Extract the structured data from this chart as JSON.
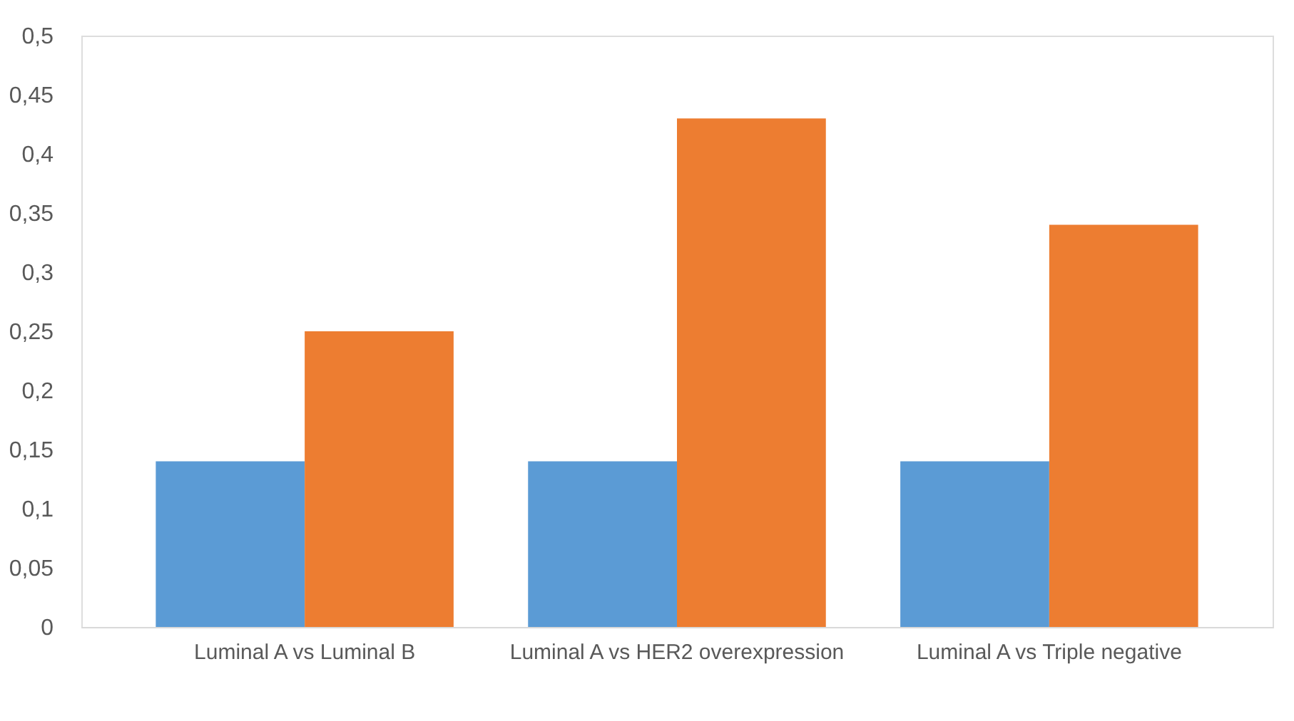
{
  "chart_data": {
    "type": "bar",
    "categories": [
      "Luminal A vs Luminal B",
      "Luminal A vs HER2 overexpression",
      "Luminal A vs Triple negative"
    ],
    "series": [
      {
        "color": "#5b9bd5",
        "values": [
          0.14,
          0.14,
          0.14
        ]
      },
      {
        "color": "#ed7d31",
        "values": [
          0.25,
          0.43,
          0.34
        ]
      }
    ],
    "ylim": [
      0,
      0.5
    ],
    "yticks": [
      0,
      {
        "value": 0.05,
        "label": "0,05"
      },
      {
        "value": 0.1,
        "label": "0,1"
      },
      {
        "value": 0.15,
        "label": "0,15"
      },
      {
        "value": 0.2,
        "label": "0,2"
      },
      {
        "value": 0.25,
        "label": "0,25"
      },
      {
        "value": 0.3,
        "label": "0,3"
      },
      {
        "value": 0.35,
        "label": "0,35"
      },
      {
        "value": 0.4,
        "label": "0,4"
      },
      {
        "value": 0.45,
        "label": "0,45"
      },
      {
        "value": 0.5,
        "label": "0,5"
      }
    ],
    "grid": false,
    "legend": false
  }
}
